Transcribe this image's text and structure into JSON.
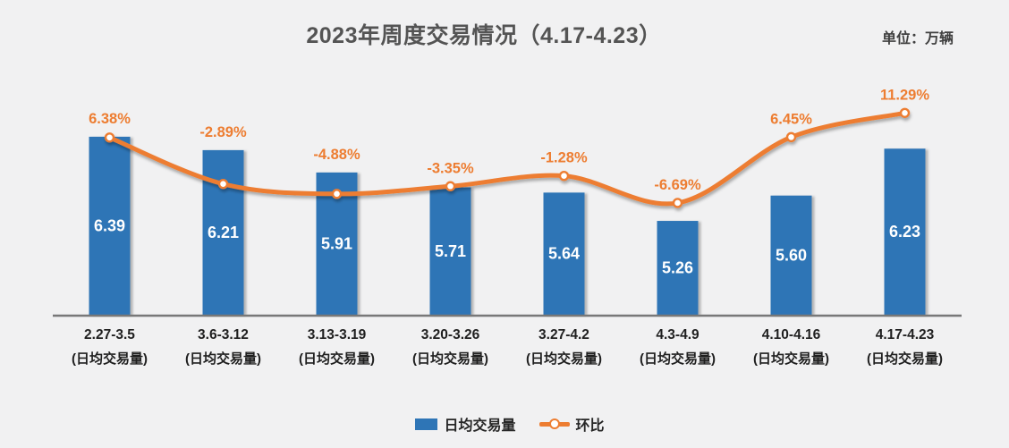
{
  "header": {
    "title": "2023年周度交易情况（4.17-4.23）",
    "unit_label": "单位：万辆"
  },
  "chart_data": {
    "type": "bar",
    "subtype": "bar-line-combo",
    "title": "2023年周度交易情况（4.17-4.23）",
    "unit": "万辆",
    "categories": [
      "2.27-3.5",
      "3.6-3.12",
      "3.13-3.19",
      "3.20-3.26",
      "3.27-4.2",
      "4.3-4.9",
      "4.10-4.16",
      "4.17-4.23"
    ],
    "category_sublabel": "(日均交易量)",
    "series": [
      {
        "name": "日均交易量",
        "type": "bar",
        "values": [
          6.39,
          6.21,
          5.91,
          5.71,
          5.64,
          5.26,
          5.6,
          6.23
        ],
        "value_labels": [
          "6.39",
          "6.21",
          "5.91",
          "5.71",
          "5.64",
          "5.26",
          "5.60",
          "6.23"
        ],
        "color": "#2E75B6",
        "label_color": "#FFFFFF"
      },
      {
        "name": "环比",
        "type": "line",
        "smooth": true,
        "values": [
          6.38,
          -2.89,
          -4.88,
          -3.35,
          -1.28,
          -6.69,
          6.45,
          11.29
        ],
        "labels": [
          "6.38%",
          "-2.89%",
          "-4.88%",
          "-3.35%",
          "-1.28%",
          "-6.69%",
          "6.45%",
          "11.29%"
        ],
        "color": "#ED7D31",
        "marker": "circle-white-fill-orange-ring"
      }
    ],
    "legend": [
      {
        "label": "日均交易量",
        "swatch": "bar",
        "color": "#2E75B6"
      },
      {
        "label": "环比",
        "swatch": "line-marker",
        "color": "#ED7D31"
      }
    ],
    "layout_hints": {
      "grid": false,
      "value_axis_visible": false,
      "percent_axis_visible": false,
      "legend_position": "bottom",
      "baseline_color": "#787878",
      "x_label_color": "#1F1F1F",
      "background": "#F1F1F2"
    }
  }
}
